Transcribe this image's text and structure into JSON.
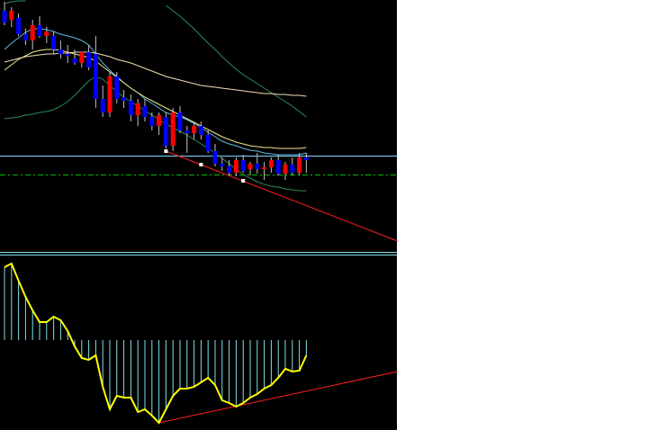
{
  "chart_data": [
    {
      "type": "candlestick",
      "open": [
        268,
        258,
        260,
        242,
        235,
        252,
        240,
        240,
        225,
        220,
        215,
        210,
        222,
        220,
        170,
        155,
        195,
        172,
        168,
        152,
        162,
        150,
        140,
        150,
        118,
        155,
        135,
        132,
        140,
        130,
        112,
        98,
        95,
        88,
        102,
        92,
        98,
        92,
        94,
        102,
        87,
        97,
        88,
        105
      ],
      "high": [
        278,
        272,
        265,
        248,
        258,
        262,
        250,
        245,
        235,
        230,
        225,
        220,
        230,
        240,
        185,
        200,
        200,
        180,
        175,
        170,
        170,
        155,
        155,
        155,
        160,
        162,
        140,
        145,
        145,
        135,
        120,
        105,
        102,
        105,
        108,
        100,
        110,
        100,
        105,
        108,
        100,
        105,
        110,
        110
      ],
      "low": [
        252,
        250,
        240,
        230,
        225,
        238,
        232,
        220,
        215,
        210,
        208,
        205,
        202,
        160,
        150,
        150,
        165,
        160,
        145,
        140,
        145,
        135,
        130,
        115,
        112,
        132,
        110,
        125,
        125,
        110,
        95,
        90,
        85,
        84,
        88,
        85,
        87,
        80,
        88,
        85,
        80,
        85,
        85,
        88
      ],
      "close": [
        255,
        268,
        242,
        235,
        252,
        240,
        245,
        225,
        220,
        218,
        210,
        222,
        205,
        170,
        155,
        195,
        170,
        168,
        152,
        165,
        150,
        140,
        152,
        118,
        155,
        135,
        132,
        140,
        130,
        112,
        98,
        95,
        88,
        102,
        90,
        98,
        92,
        94,
        102,
        87,
        97,
        88,
        105,
        102
      ],
      "up_color": "#ff0000",
      "down_color": "#0000ff",
      "wick_color": "#c0c0c0",
      "ylim": [
        0,
        280
      ],
      "lines": [
        {
          "color": "#2e8b57",
          "values": [
            276,
            278,
            279,
            279,
            null,
            null,
            null,
            null,
            null,
            null,
            null,
            null,
            null,
            null,
            null,
            null,
            null,
            null,
            null,
            null,
            null,
            null,
            null,
            274,
            268,
            262,
            255,
            248,
            240,
            232,
            225,
            217,
            210,
            203,
            197,
            192,
            187,
            182,
            177,
            172,
            167,
            162,
            156,
            150
          ]
        },
        {
          "color": "#2e8b57",
          "values": [
            148,
            149,
            150,
            152,
            153,
            155,
            156,
            158,
            162,
            167,
            174,
            182,
            190,
            195,
            192,
            185,
            178,
            172,
            167,
            162,
            157,
            152,
            147,
            142,
            138,
            134,
            130,
            125,
            120,
            115,
            110,
            104,
            98,
            92,
            86,
            82,
            78,
            75,
            73,
            72,
            70,
            69,
            68,
            68
          ]
        },
        {
          "color": "#5fb8e8",
          "values": [
            225,
            232,
            238,
            244,
            248,
            248,
            247,
            245,
            242,
            240,
            238,
            235,
            230,
            220,
            210,
            202,
            195,
            188,
            182,
            177,
            170,
            165,
            160,
            155,
            152,
            150,
            147,
            143,
            138,
            133,
            128,
            123,
            120,
            118,
            115,
            113,
            112,
            110,
            109,
            108,
            108,
            108,
            108,
            110
          ]
        },
        {
          "color": "#f0e68c",
          "values": [
            202,
            208,
            214,
            218,
            222,
            224,
            225,
            225,
            224,
            222,
            220,
            218,
            216,
            212,
            206,
            200,
            194,
            188,
            182,
            177,
            172,
            168,
            164,
            160,
            156,
            152,
            148,
            144,
            140,
            136,
            132,
            128,
            125,
            122,
            120,
            118,
            117,
            116,
            116,
            115,
            115,
            115,
            115,
            116
          ]
        },
        {
          "color": "#f5deb3",
          "values": [
            211,
            213,
            215,
            217,
            218,
            219,
            220,
            220,
            221,
            221,
            222,
            222,
            222,
            221,
            219,
            217,
            214,
            212,
            210,
            207,
            204,
            201,
            198,
            195,
            193,
            191,
            189,
            187,
            185,
            184,
            183,
            182,
            181,
            180,
            179,
            178,
            177,
            176,
            176,
            175,
            175,
            174,
            174,
            173
          ]
        }
      ],
      "levels": [
        {
          "value": 107,
          "color": "#7fd4ff",
          "dashed": false
        },
        {
          "value": 86,
          "color": "#00c000",
          "dashed": true
        }
      ],
      "trendlines": [
        {
          "x": [
            23,
            56
          ],
          "values": [
            112,
            12
          ],
          "color": "#ff2020"
        }
      ],
      "markers": {
        "x": [
          23,
          28,
          34
        ],
        "values": [
          112,
          97,
          79
        ],
        "color": "#ffffff"
      }
    },
    {
      "type": "oscillator",
      "values": [
        81,
        85,
        66,
        48,
        33,
        20,
        20,
        26,
        22,
        10,
        -7,
        -20,
        -22,
        -17,
        -52,
        -77,
        -62,
        -64,
        -64,
        -80,
        -77,
        -84,
        -92,
        -77,
        -62,
        -54,
        -54,
        -52,
        -47,
        -42,
        -50,
        -67,
        -70,
        -74,
        -70,
        -64,
        -60,
        -54,
        -50,
        -42,
        -32,
        -35,
        -34,
        -17
      ],
      "bar_color": "#7fe0e8",
      "line_color": "#ffff00",
      "ylim": [
        -100,
        92
      ],
      "trendlines": [
        {
          "x": [
            22,
            56
          ],
          "values": [
            -92,
            -35
          ],
          "color": "#ff2020"
        }
      ]
    }
  ]
}
